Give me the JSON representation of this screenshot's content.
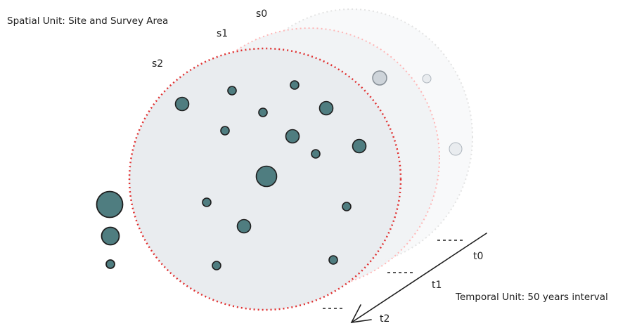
{
  "titles": {
    "spatial_unit": "Spatial Unit: Site and Survey Area",
    "temporal_unit": "Temporal Unit: 50 years interval"
  },
  "spatial_labels": {
    "s0": "s0",
    "s1": "s1",
    "s2": "s2"
  },
  "temporal_labels": {
    "t0": "t0",
    "t1": "t1",
    "t2": "t2"
  },
  "colors": {
    "site_fill": "#4f7d80",
    "site_stroke": "#1e1e1e",
    "area_fill_s2": "#e9ecef",
    "area_stroke_s2": "#e03131",
    "area_stroke_s1": "#ffc9c9",
    "area_stroke_s0": "#e9ecef"
  }
}
